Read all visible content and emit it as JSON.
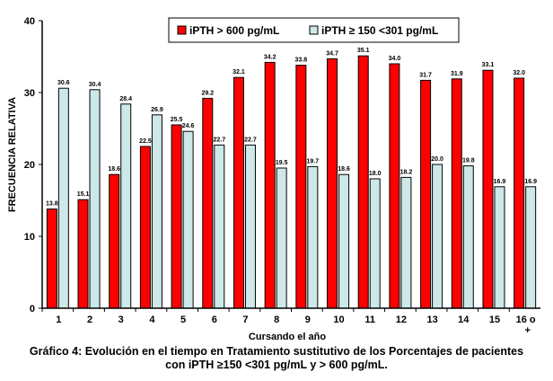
{
  "chart_data": {
    "type": "bar",
    "categories": [
      "1",
      "2",
      "3",
      "4",
      "5",
      "6",
      "7",
      "8",
      "9",
      "10",
      "11",
      "12",
      "13",
      "14",
      "15",
      "16 o +"
    ],
    "series": [
      {
        "name": "iPTH > 600 pg/mL",
        "color": "#ff0000",
        "values": [
          13.8,
          15.1,
          18.6,
          22.5,
          25.5,
          29.2,
          32.1,
          34.2,
          33.8,
          34.7,
          35.1,
          34.0,
          31.7,
          31.9,
          33.1,
          32.0
        ]
      },
      {
        "name": "iPTH ≥ 150 <301 pg/mL",
        "color": "#cce8e8",
        "values": [
          30.6,
          30.4,
          28.4,
          26.9,
          24.6,
          22.7,
          22.7,
          19.5,
          19.7,
          18.6,
          18.0,
          18.2,
          20.0,
          19.8,
          16.9,
          16.9
        ]
      }
    ],
    "xlabel": "Cursando el año",
    "ylabel": "FRECUENCIA RELATIVA",
    "ylim": [
      0,
      40
    ],
    "yticks": [
      0,
      10,
      20,
      30,
      40
    ],
    "grid": false,
    "legend_position": "top-right"
  },
  "caption_line1": "Gráfico 4: Evolución en el tiempo en Tratamiento sustitutivo de los Porcentajes de pacientes",
  "caption_line2": "con iPTH ≥150 <301 pg/mL y > 600 pg/mL."
}
